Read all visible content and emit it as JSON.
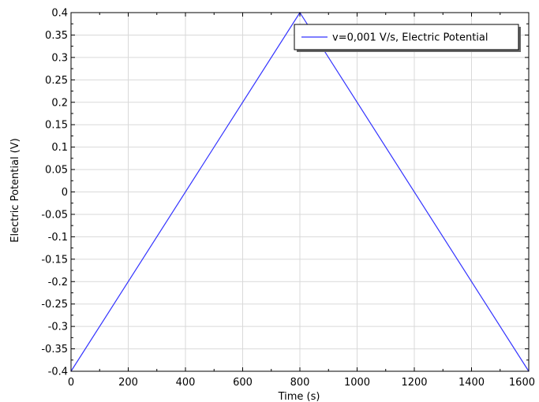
{
  "chart_data": {
    "type": "line",
    "title": "",
    "xlabel": "Time (s)",
    "ylabel": "Electric Potential (V)",
    "xlim": [
      0,
      1600
    ],
    "ylim": [
      -0.4,
      0.4
    ],
    "grid": true,
    "legend_position": "top-right",
    "x_ticks": [
      0,
      200,
      400,
      600,
      800,
      1000,
      1200,
      1400,
      1600
    ],
    "x_tick_labels": [
      "0",
      "200",
      "400",
      "600",
      "800",
      "1000",
      "1200",
      "1400",
      "1600"
    ],
    "y_ticks": [
      0.4,
      0.35,
      0.3,
      0.25,
      0.2,
      0.15,
      0.1,
      0.05,
      0,
      -0.05,
      -0.1,
      -0.15,
      -0.2,
      -0.25,
      -0.3,
      -0.35,
      -0.4
    ],
    "y_tick_labels": [
      "0.4",
      "0.35",
      "0.3",
      "0.25",
      "0.2",
      "0.15",
      "0.1",
      "0.05",
      "0",
      "-0.05",
      "-0.1",
      "-0.15",
      "-0.2",
      "-0.25",
      "-0.3",
      "-0.35",
      "-0.4"
    ],
    "series": [
      {
        "name": "v=0,001 V/s, Electric Potential",
        "color": "#3333ff",
        "x": [
          0,
          800,
          1600
        ],
        "y": [
          -0.4,
          0.4,
          -0.4
        ]
      }
    ]
  }
}
